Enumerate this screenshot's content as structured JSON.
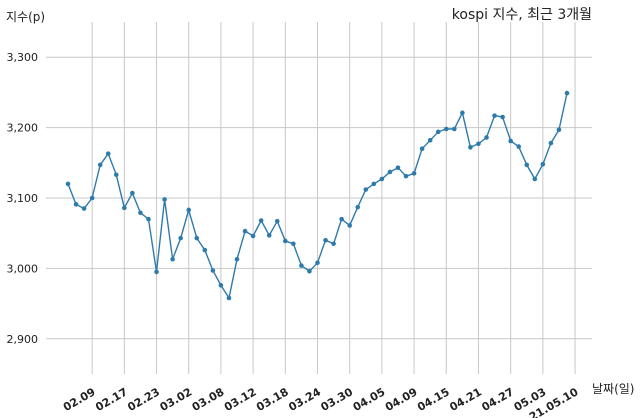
{
  "chart_data": {
    "type": "line",
    "title": "kospi 지수, 최근 3개월",
    "xlabel": "날짜(일)",
    "ylabel": "지수(p)",
    "ylim": [
      2850,
      3350
    ],
    "yticks": [
      2900,
      3000,
      3100,
      3200,
      3300
    ],
    "ytick_labels": [
      "2,900",
      "3,000",
      "3,100",
      "3,200",
      "3,300"
    ],
    "xtick_labels": [
      "02.09",
      "02.17",
      "02.23",
      "03.02",
      "03.08",
      "03.12",
      "03.18",
      "03.24",
      "03.30",
      "04.05",
      "04.09",
      "04.15",
      "04.21",
      "04.27",
      "05.03",
      "21.05.10"
    ],
    "xtick_index": [
      3,
      7,
      11,
      15,
      19,
      23,
      27,
      31,
      35,
      39,
      43,
      47,
      51,
      55,
      59,
      63
    ],
    "grid": true,
    "line_color": "#2e7bab",
    "series": [
      {
        "values": [
          3120,
          3091,
          3085,
          3100,
          3147,
          3163,
          3133,
          3086,
          3107,
          3079,
          3070,
          2995,
          3098,
          3013,
          3043,
          3083,
          3043,
          3026,
          2997,
          2976,
          2958,
          3013,
          3053,
          3046,
          3068,
          3047,
          3067,
          3039,
          3035,
          3004,
          2996,
          3008,
          3040,
          3035,
          3070,
          3061,
          3087,
          3112,
          3120,
          3127,
          3137,
          3143,
          3131,
          3135,
          3170,
          3182,
          3194,
          3198,
          3198,
          3221,
          3172,
          3177,
          3186,
          3217,
          3215,
          3181,
          3173,
          3147,
          3127,
          3148,
          3178,
          3197,
          3249
        ]
      }
    ]
  }
}
